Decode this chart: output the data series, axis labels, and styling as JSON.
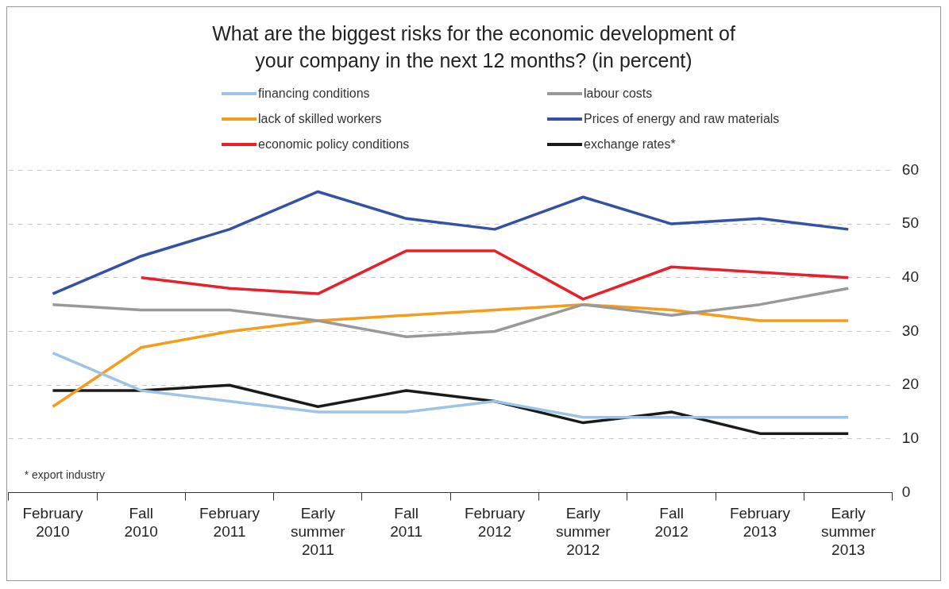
{
  "chart_data": {
    "type": "line",
    "title": "What are the biggest risks for the economic development of your company in the next 12 months? (in percent)",
    "categories": [
      "February 2010",
      "Fall 2010",
      "February 2011",
      "Early summer 2011",
      "Fall 2011",
      "February 2012",
      "Early summer 2012",
      "Fall 2012",
      "February 2013",
      "Early summer 2013"
    ],
    "series": [
      {
        "name": "financing conditions",
        "color": "#9dc3e6",
        "values": [
          26,
          19,
          17,
          15,
          15,
          17,
          14,
          14,
          14,
          14
        ]
      },
      {
        "name": "labour costs",
        "color": "#999999",
        "values": [
          35,
          34,
          34,
          32,
          29,
          30,
          35,
          33,
          35,
          38
        ]
      },
      {
        "name": "lack of skilled workers",
        "color": "#f59c1a",
        "values": [
          16,
          27,
          30,
          32,
          33,
          34,
          35,
          34,
          32,
          32
        ]
      },
      {
        "name": "Prices of energy and raw materials",
        "color": "#3452a4",
        "values": [
          37,
          44,
          49,
          56,
          51,
          49,
          55,
          50,
          51,
          49
        ]
      },
      {
        "name": "economic policy conditions",
        "color": "#e8202a",
        "values": [
          null,
          40,
          38,
          37,
          45,
          45,
          36,
          42,
          41,
          40
        ]
      },
      {
        "name": "exchange rates*",
        "color": "#1a1a1a",
        "values": [
          19,
          19,
          20,
          16,
          19,
          17,
          13,
          15,
          11,
          11
        ]
      }
    ],
    "ylim": [
      0,
      60
    ],
    "yticks": [
      0,
      10,
      20,
      30,
      40,
      50,
      60
    ],
    "grid": "y",
    "legend": "top",
    "marker": "none",
    "line_style": "solid",
    "annotations": [
      "* export industry"
    ]
  }
}
